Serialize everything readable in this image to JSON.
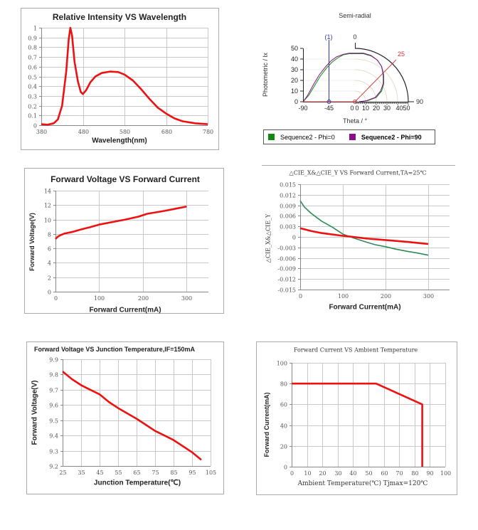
{
  "chart_data": [
    {
      "type": "line",
      "title": "Relative Intensity VS Wavelength",
      "xlabel": "Wavelength(nm)",
      "ylabel": "",
      "xlim": [
        380,
        780
      ],
      "ylim": [
        0,
        1
      ],
      "xticks": [
        380,
        480,
        580,
        680,
        780
      ],
      "yticks": [
        0,
        0.1,
        0.2,
        0.3,
        0.4,
        0.5,
        0.6,
        0.7,
        0.8,
        0.9,
        1
      ],
      "grid": true,
      "series": [
        {
          "color": "#ee1111",
          "points": [
            [
              380,
              0.01
            ],
            [
              395,
              0.005
            ],
            [
              410,
              0.02
            ],
            [
              420,
              0.06
            ],
            [
              430,
              0.2
            ],
            [
              440,
              0.55
            ],
            [
              446,
              0.88
            ],
            [
              450,
              1.0
            ],
            [
              454,
              0.92
            ],
            [
              460,
              0.65
            ],
            [
              468,
              0.45
            ],
            [
              475,
              0.34
            ],
            [
              480,
              0.32
            ],
            [
              488,
              0.36
            ],
            [
              498,
              0.44
            ],
            [
              510,
              0.5
            ],
            [
              525,
              0.535
            ],
            [
              545,
              0.55
            ],
            [
              565,
              0.545
            ],
            [
              580,
              0.52
            ],
            [
              600,
              0.46
            ],
            [
              620,
              0.37
            ],
            [
              640,
              0.27
            ],
            [
              660,
              0.18
            ],
            [
              680,
              0.12
            ],
            [
              700,
              0.07
            ],
            [
              720,
              0.04
            ],
            [
              750,
              0.02
            ],
            [
              780,
              0.01
            ]
          ]
        }
      ]
    },
    {
      "type": "polar",
      "title": "Semi-radial",
      "xlabel": "Theta / °",
      "ylabel": "Photometric / lx",
      "ylim": [
        0,
        50
      ],
      "yticks": [
        0,
        10,
        20,
        30,
        40,
        50
      ],
      "xticks_left": [
        "-90",
        "-45"
      ],
      "xticks_right": [
        "0",
        "0",
        "10",
        "20",
        "30",
        "4050"
      ],
      "top_label": "0",
      "right_label": "90",
      "cursor_label": "(1)",
      "cursor_theta": -45,
      "angle_label": "25",
      "grid": true,
      "legend": [
        {
          "name": "Sequence2 - Phi=0",
          "color": "#118811"
        },
        {
          "name": "Sequence2 - Phi=90",
          "color": "#881188"
        }
      ],
      "series": [
        {
          "name": "Sequence2 - Phi=0",
          "color": "#118811",
          "points": [
            [
              -90,
              0
            ],
            [
              -80,
              6
            ],
            [
              -70,
              15
            ],
            [
              -60,
              24
            ],
            [
              -50,
              31
            ],
            [
              -40,
              37
            ],
            [
              -30,
              41
            ],
            [
              -20,
              44
            ],
            [
              -10,
              45
            ],
            [
              0,
              45
            ],
            [
              8,
              45
            ],
            [
              15,
              43
            ],
            [
              21,
              39
            ],
            [
              25,
              33
            ],
            [
              27,
              25
            ],
            [
              27,
              17
            ],
            [
              25,
              10
            ],
            [
              20,
              4
            ],
            [
              12,
              1
            ],
            [
              4,
              0
            ]
          ]
        },
        {
          "name": "Sequence2 - Phi=90",
          "color": "#881188",
          "points": [
            [
              -90,
              0
            ],
            [
              -82,
              6
            ],
            [
              -72,
              16
            ],
            [
              -62,
              25
            ],
            [
              -52,
              32
            ],
            [
              -42,
              38
            ],
            [
              -32,
              42
            ],
            [
              -20,
              44.5
            ],
            [
              -10,
              45.5
            ],
            [
              0,
              45.5
            ],
            [
              8,
              45.5
            ],
            [
              15,
              43.5
            ],
            [
              21,
              39
            ],
            [
              25,
              33
            ],
            [
              26.5,
              25
            ],
            [
              26.5,
              17
            ],
            [
              24,
              10
            ],
            [
              19,
              4
            ],
            [
              11,
              1
            ],
            [
              4,
              0
            ]
          ]
        }
      ]
    },
    {
      "type": "line",
      "title": "Forward Voltage VS Forward Current",
      "xlabel": "Forward Current(mA)",
      "ylabel": "Forward Voltage(V)",
      "xlim": [
        0,
        350
      ],
      "ylim": [
        0,
        14
      ],
      "xticks": [
        0,
        100,
        200,
        300
      ],
      "yticks": [
        0,
        2,
        4,
        6,
        8,
        10,
        12,
        14
      ],
      "grid": true,
      "series": [
        {
          "color": "#ee1111",
          "points": [
            [
              0,
              7.3
            ],
            [
              5,
              7.6
            ],
            [
              10,
              7.8
            ],
            [
              20,
              8.05
            ],
            [
              40,
              8.3
            ],
            [
              60,
              8.65
            ],
            [
              80,
              8.95
            ],
            [
              100,
              9.3
            ],
            [
              130,
              9.65
            ],
            [
              160,
              10.0
            ],
            [
              190,
              10.4
            ],
            [
              210,
              10.8
            ],
            [
              250,
              11.2
            ],
            [
              300,
              11.8
            ]
          ]
        }
      ]
    },
    {
      "type": "line",
      "title": "△CIE_X&△CIE_Y VS Forward Current,TA=25℃",
      "xlabel": "Forward Current(mA)",
      "ylabel": "△CIE_X&△CIE_Y",
      "xlim": [
        0,
        350
      ],
      "ylim": [
        -0.015,
        0.015
      ],
      "xticks": [
        0,
        100,
        200,
        300
      ],
      "yticks": [
        -0.015,
        -0.012,
        -0.009,
        -0.006,
        -0.003,
        0,
        0.003,
        0.006,
        0.009,
        0.012,
        0.015
      ],
      "ytick_labels": [
        "-0.015",
        "-0.012",
        "-0.009",
        "-0.006",
        "-0.003",
        "0",
        "0.003",
        "0.006",
        "0.009",
        "0.012",
        "0.015"
      ],
      "grid": true,
      "series": [
        {
          "color": "#2e8b57",
          "points": [
            [
              0,
              0.0103
            ],
            [
              10,
              0.0085
            ],
            [
              25,
              0.0068
            ],
            [
              50,
              0.0045
            ],
            [
              75,
              0.0028
            ],
            [
              100,
              0.0008
            ],
            [
              125,
              -0.0003
            ],
            [
              150,
              -0.0013
            ],
            [
              175,
              -0.0022
            ],
            [
              200,
              -0.0028
            ],
            [
              225,
              -0.0035
            ],
            [
              250,
              -0.0041
            ],
            [
              275,
              -0.0046
            ],
            [
              300,
              -0.0052
            ]
          ]
        },
        {
          "color": "#ee1111",
          "points": [
            [
              0,
              0.0025
            ],
            [
              25,
              0.0017
            ],
            [
              50,
              0.0011
            ],
            [
              100,
              0.0003
            ],
            [
              125,
              0
            ],
            [
              150,
              -0.0004
            ],
            [
              200,
              -0.0009
            ],
            [
              250,
              -0.0014
            ],
            [
              300,
              -0.002
            ]
          ]
        }
      ]
    },
    {
      "type": "line",
      "title": "Forward Voltage VS Junction Temperature,IF=150mA",
      "xlabel": "Junction Temperature(℃)",
      "ylabel": "Forward Voltage(V)",
      "xlim": [
        25,
        105
      ],
      "ylim": [
        9.2,
        9.9
      ],
      "xticks": [
        25,
        35,
        45,
        55,
        65,
        75,
        85,
        95,
        105
      ],
      "yticks": [
        9.2,
        9.3,
        9.4,
        9.5,
        9.6,
        9.7,
        9.8,
        9.9
      ],
      "grid": true,
      "series": [
        {
          "color": "#ee1111",
          "points": [
            [
              25,
              9.82
            ],
            [
              30,
              9.77
            ],
            [
              35,
              9.73
            ],
            [
              40,
              9.7
            ],
            [
              45,
              9.67
            ],
            [
              50,
              9.62
            ],
            [
              55,
              9.58
            ],
            [
              60,
              9.545
            ],
            [
              65,
              9.51
            ],
            [
              70,
              9.47
            ],
            [
              75,
              9.43
            ],
            [
              80,
              9.4
            ],
            [
              85,
              9.37
            ],
            [
              90,
              9.33
            ],
            [
              95,
              9.29
            ],
            [
              100,
              9.24
            ]
          ]
        }
      ]
    },
    {
      "type": "line",
      "title": "Forward Current VS Ambient Temperature",
      "xlabel": "Ambient Temperature(℃) Tjmax=120℃",
      "ylabel": "Forward Current(mA)",
      "xlim": [
        0,
        100
      ],
      "ylim": [
        0,
        100
      ],
      "xticks": [
        0,
        10,
        20,
        30,
        40,
        50,
        60,
        70,
        80,
        90,
        100
      ],
      "yticks": [
        0,
        20,
        40,
        60,
        80,
        100
      ],
      "grid": true,
      "series": [
        {
          "color": "#ee1111",
          "points": [
            [
              0,
              80
            ],
            [
              55,
              80
            ],
            [
              85,
              60
            ],
            [
              85,
              0
            ]
          ]
        }
      ]
    }
  ]
}
